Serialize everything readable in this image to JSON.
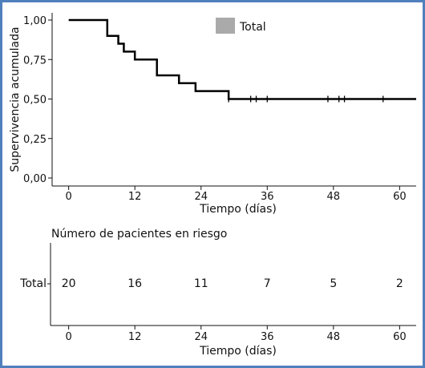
{
  "chart_data": [
    {
      "type": "line",
      "subtype": "kaplan-meier",
      "ylabel": "Supervivencia acumulada",
      "xlabel": "Tiempo (días)",
      "legend": {
        "label": "Total",
        "color": "#aaaaaa",
        "position": "top-center"
      },
      "xlim": [
        -3,
        63
      ],
      "ylim": [
        0,
        1
      ],
      "x_ticks": [
        0,
        12,
        24,
        36,
        48,
        60
      ],
      "y_ticks": [
        0,
        0.25,
        0.5,
        0.75,
        1
      ],
      "y_tick_labels": [
        "0,00",
        "0,25",
        "0,50",
        "0,75",
        "1,00"
      ],
      "series": [
        {
          "name": "Total",
          "color": "#000000",
          "steps": [
            {
              "x": 0,
              "y": 1.0
            },
            {
              "x": 7,
              "y": 0.9
            },
            {
              "x": 9,
              "y": 0.85
            },
            {
              "x": 10,
              "y": 0.8
            },
            {
              "x": 12,
              "y": 0.75
            },
            {
              "x": 16,
              "y": 0.65
            },
            {
              "x": 20,
              "y": 0.6
            },
            {
              "x": 23,
              "y": 0.55
            },
            {
              "x": 29,
              "y": 0.5
            }
          ],
          "x_end": 63,
          "censored": [
            29,
            33,
            34,
            36,
            47,
            49,
            50,
            57
          ]
        }
      ]
    },
    {
      "type": "table",
      "title": "Número de pacientes en riesgo",
      "xlabel": "Tiempo (días)",
      "x_ticks": [
        0,
        12,
        24,
        36,
        48,
        60
      ],
      "rows": [
        {
          "label": "Total",
          "values": [
            20,
            16,
            11,
            7,
            5,
            2
          ]
        }
      ]
    }
  ]
}
